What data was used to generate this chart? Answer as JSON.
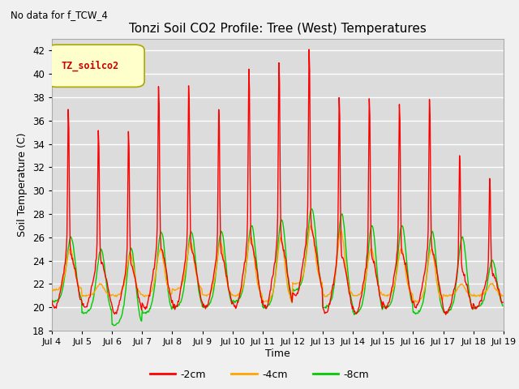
{
  "title": "Tonzi Soil CO2 Profile: Tree (West) Temperatures",
  "subtitle": "No data for f_TCW_4",
  "ylabel": "Soil Temperature (C)",
  "xlabel": "Time",
  "ylim": [
    18,
    43
  ],
  "yticks": [
    18,
    20,
    22,
    24,
    26,
    28,
    30,
    32,
    34,
    36,
    38,
    40,
    42
  ],
  "xtick_labels": [
    "Jul 4",
    "Jul 5",
    "Jul 6",
    "Jul 7",
    "Jul 8",
    "Jul 9",
    "Jul 10",
    "Jul 11",
    "Jul 12",
    "Jul 13",
    "Jul 14",
    "Jul 15",
    "Jul 16",
    "Jul 17",
    "Jul 18",
    "Jul 19"
  ],
  "legend_label": "TZ_soilco2",
  "legend_box_facecolor": "#ffffcc",
  "legend_box_edgecolor": "#aaa800",
  "legend_text_color": "#cc0000",
  "color_2cm": "#ff0000",
  "color_4cm": "#ffa500",
  "color_8cm": "#00cc00",
  "label_2cm": "-2cm",
  "label_4cm": "-4cm",
  "label_8cm": "-8cm",
  "bg_color": "#dcdcdc",
  "fig_bg_color": "#f0f0f0",
  "grid_color": "#ffffff",
  "days": 15,
  "n_per_day": 48
}
